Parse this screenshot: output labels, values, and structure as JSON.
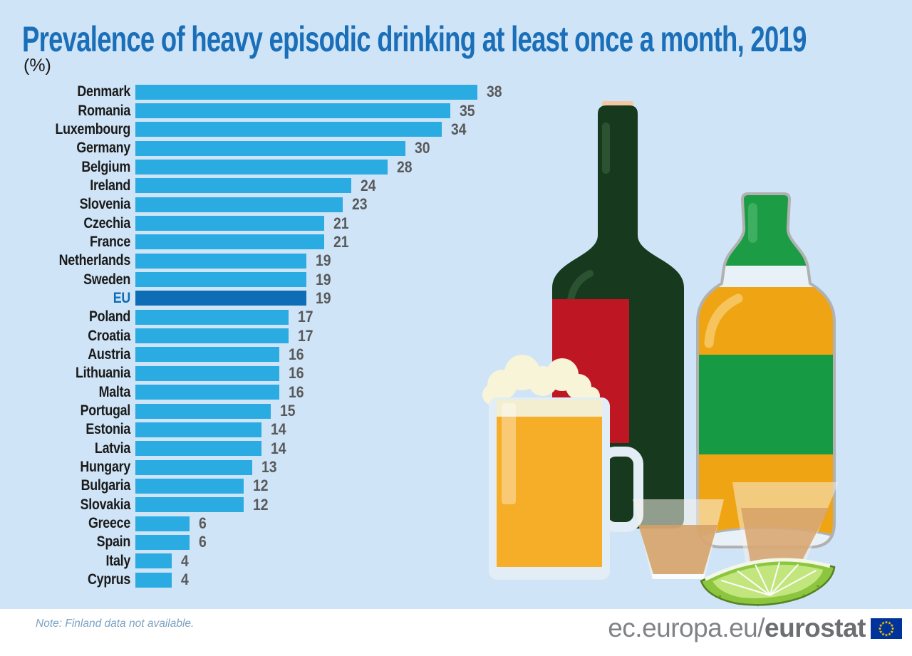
{
  "title": "Prevalence of heavy episodic drinking at least once a month, 2019",
  "unit_label": "(%)",
  "note": "Note: Finland data not available.",
  "footer": {
    "site_prefix": "ec.europa.eu/",
    "site_bold": "eurostat",
    "flag_icon": "eu-flag-icon"
  },
  "colors": {
    "background": "#cfe4f6",
    "title_blue": "#1a6fb8",
    "bar_blue": "#2aabe2",
    "eu_highlight_blue": "#0d6db5",
    "value_gray": "#58595b",
    "label_dark": "#1a1a1a",
    "note_blue": "#7ba2c2",
    "footer_gray": "#808285",
    "flag_blue": "#003399",
    "flag_yellow": "#ffcc00"
  },
  "chart_data": {
    "type": "bar",
    "orientation": "horizontal",
    "title": "Prevalence of heavy episodic drinking at least once a month, 2019",
    "unit": "%",
    "xlabel": "",
    "ylabel": "",
    "xlim": [
      0,
      38
    ],
    "grid": false,
    "value_labels": true,
    "legend": "none",
    "highlight_category": "EU",
    "categories": [
      "Denmark",
      "Romania",
      "Luxembourg",
      "Germany",
      "Belgium",
      "Ireland",
      "Slovenia",
      "Czechia",
      "France",
      "Netherlands",
      "Sweden",
      "EU",
      "Poland",
      "Croatia",
      "Austria",
      "Lithuania",
      "Malta",
      "Portugal",
      "Estonia",
      "Latvia",
      "Hungary",
      "Bulgaria",
      "Slovakia",
      "Greece",
      "Spain",
      "Italy",
      "Cyprus"
    ],
    "values": [
      38,
      35,
      34,
      30,
      28,
      24,
      23,
      21,
      21,
      19,
      19,
      19,
      17,
      17,
      16,
      16,
      16,
      15,
      14,
      14,
      13,
      12,
      12,
      6,
      6,
      4,
      4
    ]
  },
  "illustration": {
    "description": "flat drinks illustration",
    "items": [
      "wine-bottle-icon",
      "whiskey-bottle-icon",
      "beer-mug-icon",
      "shot-glass-icon",
      "shot-glass-icon",
      "lime-wedge-icon"
    ]
  }
}
